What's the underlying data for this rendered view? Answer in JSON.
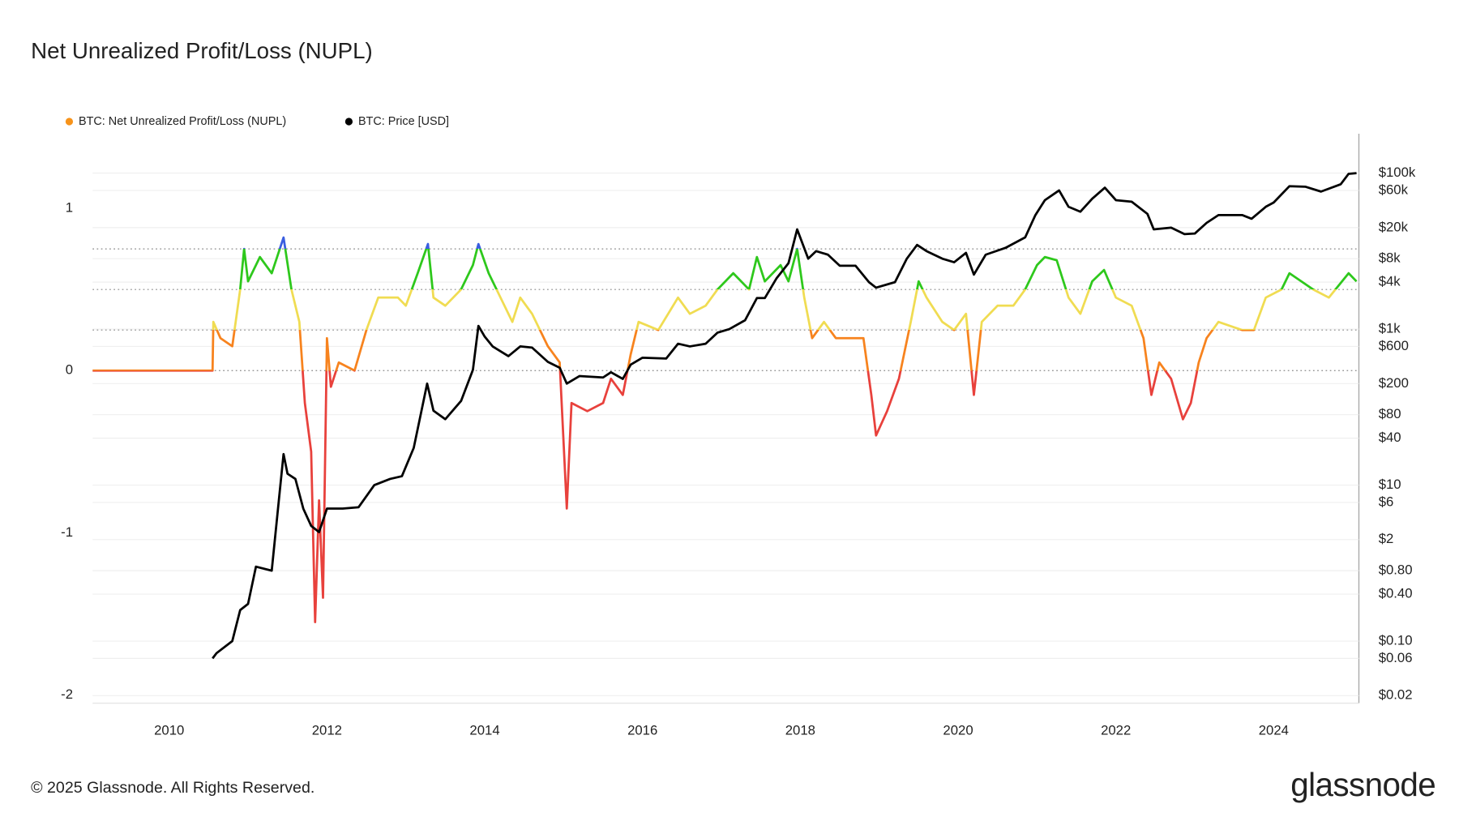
{
  "chart_data": {
    "type": "line",
    "title": "Net Unrealized Profit/Loss (NUPL)",
    "footer": "© 2025 Glassnode. All Rights Reserved.",
    "brand": "glassnode",
    "xlim": [
      2009.03,
      2025.08
    ],
    "xticks": [
      2010,
      2012,
      2014,
      2016,
      2018,
      2020,
      2022,
      2024
    ],
    "ylim": [
      -2.05,
      1.46
    ],
    "yticks": [
      -2,
      -1,
      0,
      1
    ],
    "y2lim": [
      0.016,
      320000
    ],
    "y2log": true,
    "y2ticks": [
      {
        "value": 0.02,
        "label": "$0.02"
      },
      {
        "value": 0.06,
        "label": "$0.06"
      },
      {
        "value": 0.1,
        "label": "$0.10"
      },
      {
        "value": 0.4,
        "label": "$0.40"
      },
      {
        "value": 0.8,
        "label": "$0.80"
      },
      {
        "value": 2,
        "label": "$2"
      },
      {
        "value": 6,
        "label": "$6"
      },
      {
        "value": 10,
        "label": "$10"
      },
      {
        "value": 40,
        "label": "$40"
      },
      {
        "value": 80,
        "label": "$80"
      },
      {
        "value": 200,
        "label": "$200"
      },
      {
        "value": 600,
        "label": "$600"
      },
      {
        "value": 1000,
        "label": "$1k"
      },
      {
        "value": 4000,
        "label": "$4k"
      },
      {
        "value": 8000,
        "label": "$8k"
      },
      {
        "value": 20000,
        "label": "$20k"
      },
      {
        "value": 60000,
        "label": "$60k"
      },
      {
        "value": 100000,
        "label": "$100k"
      }
    ],
    "grid": true,
    "reference_lines": [
      0,
      0.25,
      0.5,
      0.75
    ],
    "zone_colors": [
      "#e8413c",
      "#f7831e",
      "#f0dc52",
      "#2ec81c",
      "#3a5ee0"
    ],
    "series": [
      {
        "name": "BTC: Net Unrealized Profit/Loss (NUPL)",
        "color": "#f7931a",
        "axis": "y",
        "x": [
          2009.03,
          2010.55,
          2010.56,
          2010.65,
          2010.8,
          2010.9,
          2010.95,
          2011.0,
          2011.15,
          2011.3,
          2011.45,
          2011.55,
          2011.65,
          2011.72,
          2011.8,
          2011.85,
          2011.9,
          2011.95,
          2012.0,
          2012.05,
          2012.15,
          2012.35,
          2012.5,
          2012.65,
          2012.9,
          2013.0,
          2013.15,
          2013.28,
          2013.35,
          2013.5,
          2013.7,
          2013.85,
          2013.92,
          2014.05,
          2014.2,
          2014.35,
          2014.45,
          2014.6,
          2014.8,
          2014.95,
          2015.04,
          2015.1,
          2015.3,
          2015.5,
          2015.6,
          2015.75,
          2015.85,
          2015.95,
          2016.2,
          2016.45,
          2016.6,
          2016.8,
          2016.95,
          2017.15,
          2017.35,
          2017.45,
          2017.55,
          2017.75,
          2017.85,
          2017.96,
          2018.05,
          2018.15,
          2018.3,
          2018.45,
          2018.6,
          2018.8,
          2018.9,
          2018.96,
          2019.1,
          2019.25,
          2019.4,
          2019.5,
          2019.6,
          2019.8,
          2019.95,
          2020.1,
          2020.2,
          2020.3,
          2020.5,
          2020.7,
          2020.85,
          2021.0,
          2021.1,
          2021.25,
          2021.4,
          2021.55,
          2021.7,
          2021.85,
          2022.0,
          2022.2,
          2022.35,
          2022.45,
          2022.55,
          2022.7,
          2022.85,
          2022.95,
          2023.05,
          2023.15,
          2023.3,
          2023.6,
          2023.75,
          2023.9,
          2024.1,
          2024.2,
          2024.5,
          2024.7,
          2024.95,
          2025.05
        ],
        "values": [
          0,
          0,
          0.3,
          0.2,
          0.15,
          0.5,
          0.75,
          0.55,
          0.7,
          0.6,
          0.82,
          0.5,
          0.3,
          -0.2,
          -0.5,
          -1.55,
          -0.8,
          -1.4,
          0.2,
          -0.1,
          0.05,
          0.0,
          0.25,
          0.45,
          0.45,
          0.4,
          0.6,
          0.78,
          0.45,
          0.4,
          0.5,
          0.65,
          0.78,
          0.6,
          0.45,
          0.3,
          0.45,
          0.35,
          0.15,
          0.05,
          -0.85,
          -0.2,
          -0.25,
          -0.2,
          -0.05,
          -0.15,
          0.1,
          0.3,
          0.25,
          0.45,
          0.35,
          0.4,
          0.5,
          0.6,
          0.5,
          0.7,
          0.55,
          0.65,
          0.55,
          0.75,
          0.45,
          0.2,
          0.3,
          0.2,
          0.2,
          0.2,
          -0.15,
          -0.4,
          -0.25,
          -0.05,
          0.3,
          0.55,
          0.45,
          0.3,
          0.25,
          0.35,
          -0.15,
          0.3,
          0.4,
          0.4,
          0.5,
          0.65,
          0.7,
          0.68,
          0.45,
          0.35,
          0.55,
          0.62,
          0.45,
          0.4,
          0.2,
          -0.15,
          0.05,
          -0.05,
          -0.3,
          -0.2,
          0.05,
          0.2,
          0.3,
          0.25,
          0.25,
          0.45,
          0.5,
          0.6,
          0.5,
          0.45,
          0.6,
          0.55
        ]
      },
      {
        "name": "BTC: Price [USD]",
        "color": "#000000",
        "axis": "y2",
        "x": [
          2010.55,
          2010.6,
          2010.8,
          2010.9,
          2011.0,
          2011.1,
          2011.3,
          2011.4,
          2011.45,
          2011.5,
          2011.6,
          2011.7,
          2011.8,
          2011.9,
          2012.0,
          2012.2,
          2012.4,
          2012.6,
          2012.8,
          2012.95,
          2013.1,
          2013.27,
          2013.35,
          2013.5,
          2013.7,
          2013.85,
          2013.92,
          2014.0,
          2014.1,
          2014.3,
          2014.45,
          2014.6,
          2014.8,
          2014.95,
          2015.04,
          2015.2,
          2015.5,
          2015.6,
          2015.75,
          2015.85,
          2016.0,
          2016.3,
          2016.45,
          2016.6,
          2016.8,
          2016.95,
          2017.1,
          2017.3,
          2017.45,
          2017.55,
          2017.7,
          2017.85,
          2017.96,
          2018.1,
          2018.2,
          2018.35,
          2018.5,
          2018.7,
          2018.87,
          2018.96,
          2019.2,
          2019.35,
          2019.48,
          2019.6,
          2019.8,
          2019.95,
          2020.1,
          2020.2,
          2020.35,
          2020.6,
          2020.85,
          2020.98,
          2021.1,
          2021.28,
          2021.4,
          2021.55,
          2021.7,
          2021.86,
          2022.0,
          2022.2,
          2022.4,
          2022.48,
          2022.7,
          2022.87,
          2023.0,
          2023.15,
          2023.3,
          2023.6,
          2023.72,
          2023.9,
          2024.0,
          2024.2,
          2024.4,
          2024.6,
          2024.85,
          2024.95,
          2025.05
        ],
        "values": [
          0.06,
          0.07,
          0.1,
          0.25,
          0.3,
          0.9,
          0.8,
          8,
          25,
          14,
          12,
          5,
          3,
          2.5,
          5,
          5,
          5.2,
          10,
          12,
          13,
          30,
          200,
          90,
          70,
          120,
          300,
          1100,
          800,
          600,
          450,
          600,
          580,
          380,
          320,
          200,
          250,
          240,
          280,
          230,
          350,
          430,
          420,
          650,
          600,
          650,
          900,
          1000,
          1300,
          2500,
          2500,
          4500,
          7000,
          19000,
          8000,
          10000,
          9000,
          6500,
          6500,
          4000,
          3400,
          4000,
          8000,
          12000,
          10000,
          8000,
          7200,
          9500,
          5000,
          9000,
          11000,
          15000,
          29000,
          45000,
          60000,
          37000,
          32000,
          47000,
          65000,
          45000,
          43000,
          30000,
          19000,
          20000,
          16500,
          16800,
          23000,
          29000,
          29000,
          26000,
          37000,
          42000,
          68000,
          67000,
          58000,
          72000,
          98000,
          100000
        ]
      }
    ]
  }
}
